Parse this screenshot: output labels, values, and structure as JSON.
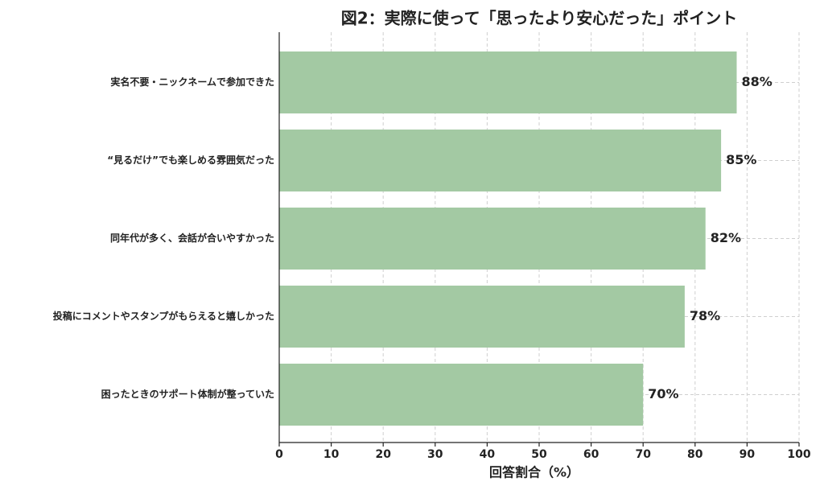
{
  "chart_data": {
    "type": "barh",
    "title": "図2：実際に使って「思ったより安心だった」ポイント",
    "xlabel": "回答割合（%）",
    "categories": [
      "実名不要・ニックネームで参加できた",
      "“見るだけ”でも楽しめる雰囲気だった",
      "同年代が多く、会話が合いやすかった",
      "投稿にコメントやスタンプがもらえると嬉しかった",
      "困ったときのサポート体制が整っていた"
    ],
    "values": [
      88,
      85,
      82,
      78,
      70
    ],
    "value_labels": [
      "88%",
      "85%",
      "82%",
      "78%",
      "70%"
    ],
    "color": "#a3c9a3",
    "xlim": [
      0,
      100
    ],
    "xticks": [
      0,
      10,
      20,
      30,
      40,
      50,
      60,
      70,
      80,
      90,
      100
    ],
    "grid": true
  }
}
